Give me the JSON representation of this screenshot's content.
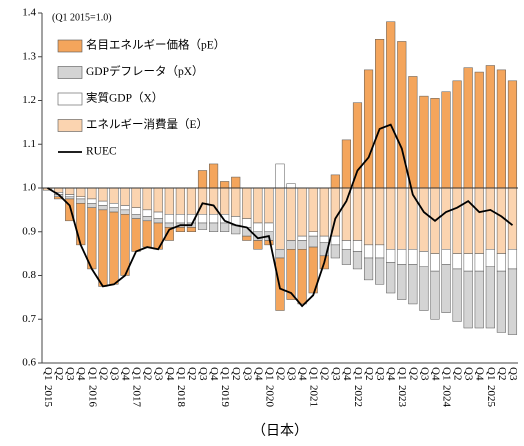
{
  "chart_data": {
    "type": "bar",
    "annotation": "(Q1 2015=1.0)",
    "caption": "（日本）",
    "baseline": 1,
    "ylim": [
      0.6,
      1.4
    ],
    "yticks": [
      0.6,
      0.7,
      0.8,
      0.9,
      {
        "value": 1,
        "label": "1.0"
      },
      1.1,
      1.2,
      1.3,
      1.4
    ],
    "categories": [
      "Q1",
      "Q2",
      "Q3",
      "Q4",
      "Q1",
      "Q2",
      "Q3",
      "Q4",
      "Q1",
      "Q2",
      "Q3",
      "Q4",
      "Q1",
      "Q2",
      "Q3",
      "Q4",
      "Q1",
      "Q2",
      "Q3",
      "Q4",
      "Q1",
      "Q2",
      "Q3",
      "Q4",
      "Q1",
      "Q2",
      "Q3",
      "Q4",
      "Q1",
      "Q2",
      "Q3",
      "Q4",
      "Q1",
      "Q2",
      "Q3",
      "Q4",
      "Q1",
      "Q2",
      "Q3",
      "Q4",
      "Q1",
      "Q2",
      "Q3"
    ],
    "years": [
      "2015",
      "2016",
      "2017",
      "2018",
      "2019",
      "2020",
      "2021",
      "2022",
      "2023",
      "2024",
      "2025"
    ],
    "series": [
      {
        "name": "名目エネルギー価格（pE）",
        "type": "bar",
        "color": "#f4a55c",
        "values": [
          0,
          -0.005,
          -0.05,
          -0.095,
          -0.14,
          -0.175,
          -0.165,
          -0.14,
          -0.075,
          -0.06,
          -0.06,
          -0.03,
          -0.01,
          -0.01,
          0.04,
          0.055,
          0.015,
          0.025,
          -0.01,
          -0.02,
          -0.01,
          -0.12,
          -0.115,
          -0.125,
          -0.105,
          -0.03,
          0.03,
          0.11,
          0.195,
          0.27,
          0.34,
          0.38,
          0.335,
          0.255,
          0.21,
          0.205,
          0.22,
          0.245,
          0.275,
          0.265,
          0.28,
          0.27,
          0.245
        ]
      },
      {
        "name": "GDPデフレータ（pX）",
        "type": "bar",
        "color": "#d4d4d4",
        "values": [
          0,
          -0.005,
          -0.005,
          -0.01,
          -0.01,
          -0.01,
          -0.01,
          -0.01,
          -0.01,
          -0.01,
          -0.01,
          -0.01,
          -0.01,
          -0.01,
          -0.015,
          -0.02,
          -0.02,
          -0.02,
          -0.02,
          -0.02,
          -0.02,
          -0.02,
          -0.02,
          -0.02,
          -0.025,
          -0.03,
          -0.03,
          -0.035,
          -0.04,
          -0.05,
          -0.06,
          -0.07,
          -0.08,
          -0.09,
          -0.1,
          -0.11,
          -0.11,
          -0.12,
          -0.13,
          -0.13,
          -0.14,
          -0.14,
          -0.15
        ]
      },
      {
        "name": "実質GDP（X）",
        "type": "bar",
        "color": "#ffffff",
        "values": [
          0,
          -0.005,
          -0.005,
          -0.005,
          -0.01,
          -0.01,
          -0.01,
          -0.01,
          -0.015,
          -0.015,
          -0.015,
          -0.02,
          -0.02,
          -0.02,
          -0.02,
          -0.02,
          -0.02,
          -0.02,
          -0.02,
          -0.02,
          -0.02,
          0.055,
          0.01,
          -0.01,
          -0.01,
          -0.015,
          -0.02,
          -0.02,
          -0.025,
          -0.03,
          -0.03,
          -0.03,
          -0.035,
          -0.035,
          -0.035,
          -0.04,
          -0.035,
          -0.035,
          -0.04,
          -0.04,
          -0.04,
          -0.04,
          -0.045
        ]
      },
      {
        "name": "エネルギー消費量（E）",
        "type": "bar",
        "color": "#fbd4b0",
        "values": [
          -0.005,
          -0.01,
          -0.015,
          -0.02,
          -0.025,
          -0.03,
          -0.035,
          -0.04,
          -0.045,
          -0.05,
          -0.055,
          -0.06,
          -0.06,
          -0.06,
          -0.06,
          -0.06,
          -0.06,
          -0.065,
          -0.07,
          -0.08,
          -0.08,
          -0.14,
          -0.12,
          -0.11,
          -0.1,
          -0.11,
          -0.11,
          -0.12,
          -0.12,
          -0.13,
          -0.13,
          -0.14,
          -0.14,
          -0.14,
          -0.145,
          -0.15,
          -0.14,
          -0.15,
          -0.15,
          -0.15,
          -0.14,
          -0.15,
          -0.14
        ]
      },
      {
        "name": "RUEC",
        "type": "line",
        "color": "#000000",
        "values": [
          1.0,
          0.985,
          0.96,
          0.87,
          0.815,
          0.775,
          0.78,
          0.8,
          0.855,
          0.865,
          0.86,
          0.905,
          0.915,
          0.915,
          0.965,
          0.96,
          0.925,
          0.915,
          0.91,
          0.885,
          0.89,
          0.77,
          0.76,
          0.73,
          0.755,
          0.83,
          0.93,
          0.97,
          1.04,
          1.07,
          1.135,
          1.145,
          1.09,
          0.985,
          0.945,
          0.925,
          0.945,
          0.955,
          0.97,
          0.945,
          0.95,
          0.935,
          0.915
        ]
      }
    ]
  }
}
